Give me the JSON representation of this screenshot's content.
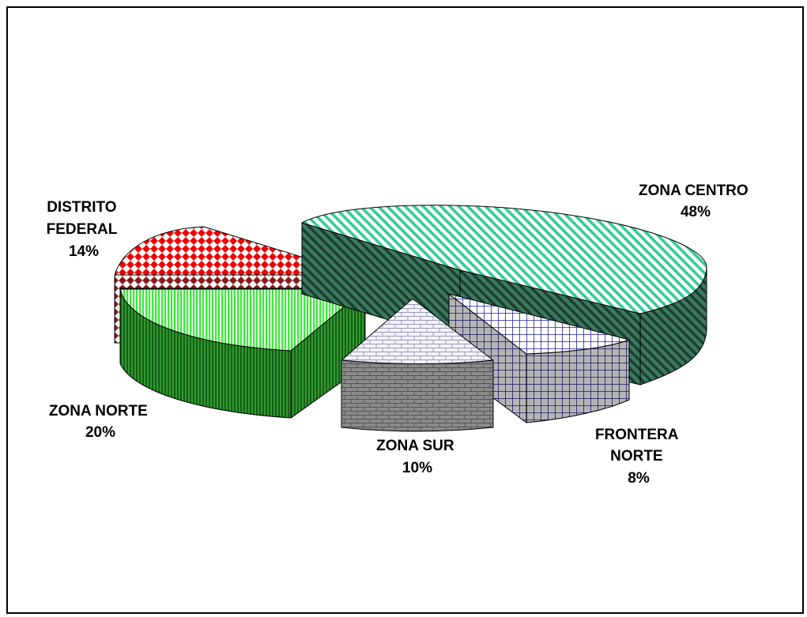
{
  "chart_data": {
    "type": "pie",
    "style": "3d-exploded",
    "slices": [
      {
        "key": "centro",
        "label": "ZONA CENTRO",
        "label_lines": [
          "ZONA CENTRO"
        ],
        "percent_text": "48%",
        "value": 48,
        "color": "#33CC99",
        "pattern": "diagonal-stripes"
      },
      {
        "key": "frontera",
        "label": "FRONTERA NORTE",
        "label_lines": [
          "FRONTERA",
          "NORTE"
        ],
        "percent_text": "8%",
        "value": 8,
        "color": "#1A1A8C",
        "pattern": "grid"
      },
      {
        "key": "sur",
        "label": "ZONA SUR",
        "label_lines": [
          "ZONA SUR"
        ],
        "percent_text": "10%",
        "value": 10,
        "color": "#888888",
        "pattern": "bricks"
      },
      {
        "key": "norte",
        "label": "ZONA NORTE",
        "label_lines": [
          "ZONA NORTE"
        ],
        "percent_text": "20%",
        "value": 20,
        "color": "#33EE33",
        "pattern": "vertical-stripes"
      },
      {
        "key": "df",
        "label": "DISTRITO FEDERAL",
        "label_lines": [
          "DISTRITO",
          "FEDERAL"
        ],
        "percent_text": "14%",
        "value": 14,
        "color": "#EE0000",
        "pattern": "diamonds"
      }
    ]
  }
}
